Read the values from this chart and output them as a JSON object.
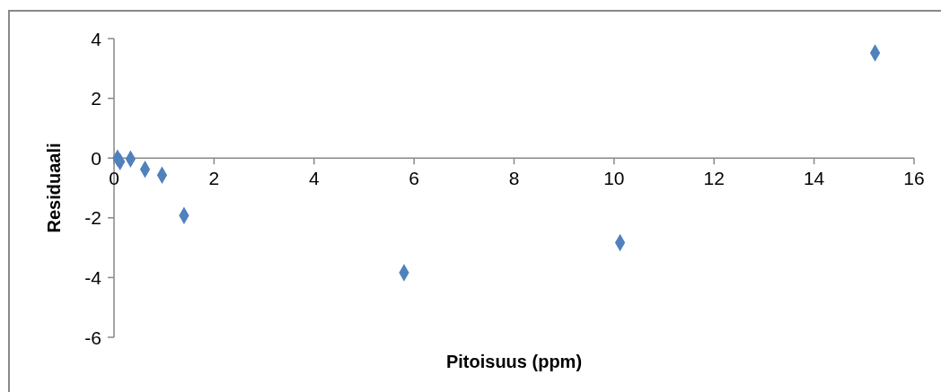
{
  "chart_data": {
    "type": "scatter",
    "xlabel": "Pitoisuus (ppm)",
    "ylabel": "Residuaali",
    "x": [
      0.07,
      0.12,
      0.33,
      0.62,
      0.96,
      1.4,
      5.8,
      10.12,
      15.22
    ],
    "series": [
      {
        "color": "#4f81bd",
        "values": [
          0.0,
          -0.12,
          -0.03,
          -0.38,
          -0.57,
          -1.92,
          -3.84,
          -2.83,
          3.52
        ]
      }
    ],
    "xlim": [
      0,
      16
    ],
    "xticks": [
      0,
      2,
      4,
      6,
      8,
      10,
      12,
      14,
      16
    ],
    "ylim": [
      -6,
      4
    ],
    "yticks": [
      -6,
      -4,
      -2,
      0,
      2,
      4
    ],
    "marker": "diamond",
    "grid": false,
    "legend": false
  }
}
